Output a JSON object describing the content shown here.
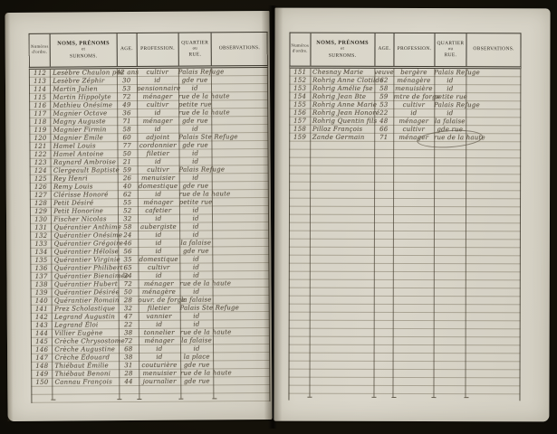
{
  "scan": {
    "background_color": "#14110d",
    "page_color": "#d8d4c7",
    "ink_color": "#5d5547",
    "print_color": "#2e2a22",
    "rule_color": "#7a725e"
  },
  "header": {
    "numero_line1": "Numéros",
    "numero_line2": "d'ordre.",
    "noms_line1": "NOMS, PRÉNOMS",
    "noms_line2": "et",
    "noms_line3": "SURNOMS.",
    "age": "AGE.",
    "profession": "PROFESSION.",
    "quartier_line1": "QUARTIER",
    "quartier_line2": "ou",
    "quartier_line3": "RUE.",
    "observations": "OBSERVATIONS."
  },
  "left_page": {
    "rows": [
      {
        "no": "112",
        "name": "Lesèbre Chaulon pre",
        "age": "42 ans",
        "profession": "cultivr",
        "quartier": "Palais Refuge",
        "obs": ""
      },
      {
        "no": "113",
        "name": "Lesèbre Zéphir",
        "age": "30",
        "profession": "id",
        "quartier": "gde rue",
        "obs": ""
      },
      {
        "no": "114",
        "name": "Martin Julien",
        "age": "53",
        "profession": "pensionnaire",
        "quartier": "id",
        "obs": ""
      },
      {
        "no": "115",
        "name": "Martin Hippolyte",
        "age": "72",
        "profession": "ménager",
        "quartier": "rue de la haute",
        "obs": ""
      },
      {
        "no": "116",
        "name": "Mathieu Onésime",
        "age": "49",
        "profession": "cultivr",
        "quartier": "petite rue",
        "obs": ""
      },
      {
        "no": "117",
        "name": "Magnier Octave",
        "age": "36",
        "profession": "id",
        "quartier": "rue de la haute",
        "obs": ""
      },
      {
        "no": "118",
        "name": "Magny Auguste",
        "age": "71",
        "profession": "ménager",
        "quartier": "gde rue",
        "obs": ""
      },
      {
        "no": "119",
        "name": "Magnier Firmin",
        "age": "58",
        "profession": "id",
        "quartier": "id",
        "obs": ""
      },
      {
        "no": "120",
        "name": "Magnier Émile",
        "age": "60",
        "profession": "adjoint",
        "quartier": "Palais Ste Refuge",
        "obs": ""
      },
      {
        "no": "121",
        "name": "Hamel Louis",
        "age": "77",
        "profession": "cordonnier",
        "quartier": "gde rue",
        "obs": ""
      },
      {
        "no": "122",
        "name": "Hamel Antoine",
        "age": "50",
        "profession": "filetier",
        "quartier": "id",
        "obs": ""
      },
      {
        "no": "123",
        "name": "Raynard Ambroise",
        "age": "21",
        "profession": "id",
        "quartier": "id",
        "obs": ""
      },
      {
        "no": "124",
        "name": "Clergeault Baptiste",
        "age": "59",
        "profession": "cultivr",
        "quartier": "Palais Refuge",
        "obs": ""
      },
      {
        "no": "125",
        "name": "Rey Henri",
        "age": "26",
        "profession": "menuisier",
        "quartier": "id",
        "obs": ""
      },
      {
        "no": "126",
        "name": "Remy Louis",
        "age": "40",
        "profession": "domestique",
        "quartier": "gde rue",
        "obs": ""
      },
      {
        "no": "127",
        "name": "Clérisse Honoré",
        "age": "62",
        "profession": "id",
        "quartier": "rue de la haute",
        "obs": ""
      },
      {
        "no": "128",
        "name": "Petit Désiré",
        "age": "55",
        "profession": "ménager",
        "quartier": "petite rue",
        "obs": ""
      },
      {
        "no": "129",
        "name": "Petit Honorine",
        "age": "52",
        "profession": "cafetier",
        "quartier": "id",
        "obs": ""
      },
      {
        "no": "130",
        "name": "Fischer Nicolas",
        "age": "32",
        "profession": "id",
        "quartier": "id",
        "obs": ""
      },
      {
        "no": "131",
        "name": "Quérantier Anthime",
        "age": "58",
        "profession": "aubergiste",
        "quartier": "id",
        "obs": ""
      },
      {
        "no": "132",
        "name": "Quérantier Onésime",
        "age": "24",
        "profession": "id",
        "quartier": "id",
        "obs": ""
      },
      {
        "no": "133",
        "name": "Quérantier Grégoire",
        "age": "46",
        "profession": "id",
        "quartier": "la falaise",
        "obs": ""
      },
      {
        "no": "134",
        "name": "Quérantier Héloïse",
        "age": "56",
        "profession": "id",
        "quartier": "gde rue",
        "obs": ""
      },
      {
        "no": "135",
        "name": "Quérantier Virginie",
        "age": "35",
        "profession": "domestique",
        "quartier": "id",
        "obs": ""
      },
      {
        "no": "136",
        "name": "Quérantier Philibert",
        "age": "65",
        "profession": "cultivr",
        "quartier": "id",
        "obs": ""
      },
      {
        "no": "137",
        "name": "Quérantier Bienaimée",
        "age": "24",
        "profession": "id",
        "quartier": "id",
        "obs": ""
      },
      {
        "no": "138",
        "name": "Quérantier Hubert",
        "age": "72",
        "profession": "ménager",
        "quartier": "rue de la haute",
        "obs": ""
      },
      {
        "no": "139",
        "name": "Quérantier Désirée",
        "age": "50",
        "profession": "ménagère",
        "quartier": "id",
        "obs": ""
      },
      {
        "no": "140",
        "name": "Quérantier Romain",
        "age": "28",
        "profession": "ouvr. de forge",
        "quartier": "la falaise",
        "obs": ""
      },
      {
        "no": "141",
        "name": "Prez Scholastique",
        "age": "32",
        "profession": "filetier",
        "quartier": "Palais Ste Refuge",
        "obs": ""
      },
      {
        "no": "142",
        "name": "Legrand Augustin",
        "age": "47",
        "profession": "vannier",
        "quartier": "id",
        "obs": ""
      },
      {
        "no": "143",
        "name": "Legrand Éloi",
        "age": "22",
        "profession": "id",
        "quartier": "id",
        "obs": ""
      },
      {
        "no": "144",
        "name": "Villier Eugène",
        "age": "38",
        "profession": "tonnelier",
        "quartier": "rue de la haute",
        "obs": ""
      },
      {
        "no": "145",
        "name": "Crèche Chrysostome",
        "age": "72",
        "profession": "ménager",
        "quartier": "la falaise",
        "obs": ""
      },
      {
        "no": "146",
        "name": "Crèche Augustine",
        "age": "68",
        "profession": "id",
        "quartier": "id",
        "obs": ""
      },
      {
        "no": "147",
        "name": "Crèche Édouard",
        "age": "38",
        "profession": "id",
        "quartier": "la place",
        "obs": ""
      },
      {
        "no": "148",
        "name": "Thiébaut Émilie",
        "age": "31",
        "profession": "couturière",
        "quartier": "gde rue",
        "obs": ""
      },
      {
        "no": "149",
        "name": "Thiébaut Benoni",
        "age": "28",
        "profession": "menuisier",
        "quartier": "rue de la haute",
        "obs": ""
      },
      {
        "no": "150",
        "name": "Cannau François",
        "age": "44",
        "profession": "journalier",
        "quartier": "gde rue",
        "obs": ""
      }
    ]
  },
  "right_page": {
    "rows": [
      {
        "no": "151",
        "name": "Chesnay Marie",
        "age": "veuve",
        "profession": "bergère",
        "quartier": "Palais Refuge",
        "obs": ""
      },
      {
        "no": "152",
        "name": "Rohrig Anne Clotilde",
        "age": "62",
        "profession": "ménagère",
        "quartier": "id",
        "obs": ""
      },
      {
        "no": "153",
        "name": "Rohrig Amélie fse",
        "age": "58",
        "profession": "menuisière",
        "quartier": "id",
        "obs": ""
      },
      {
        "no": "154",
        "name": "Rohrig Jean Bte",
        "age": "59",
        "profession": "mtre de forge",
        "quartier": "petite rue",
        "obs": ""
      },
      {
        "no": "155",
        "name": "Rohrig Anne Marie",
        "age": "53",
        "profession": "cultivr",
        "quartier": "Palais Refuge",
        "obs": ""
      },
      {
        "no": "156",
        "name": "Rohrig Jean Honoré",
        "age": "22",
        "profession": "id",
        "quartier": "id",
        "obs": ""
      },
      {
        "no": "157",
        "name": "Rohrig Quentin fils",
        "age": "48",
        "profession": "ménager",
        "quartier": "la falaise",
        "obs": ""
      },
      {
        "no": "158",
        "name": "Pilloz François",
        "age": "66",
        "profession": "cultivr",
        "quartier": "gde rue",
        "obs": ""
      },
      {
        "no": "159",
        "name": "Zande Germain",
        "age": "71",
        "profession": "ménager",
        "quartier": "rue de la haute",
        "obs": ""
      }
    ]
  }
}
